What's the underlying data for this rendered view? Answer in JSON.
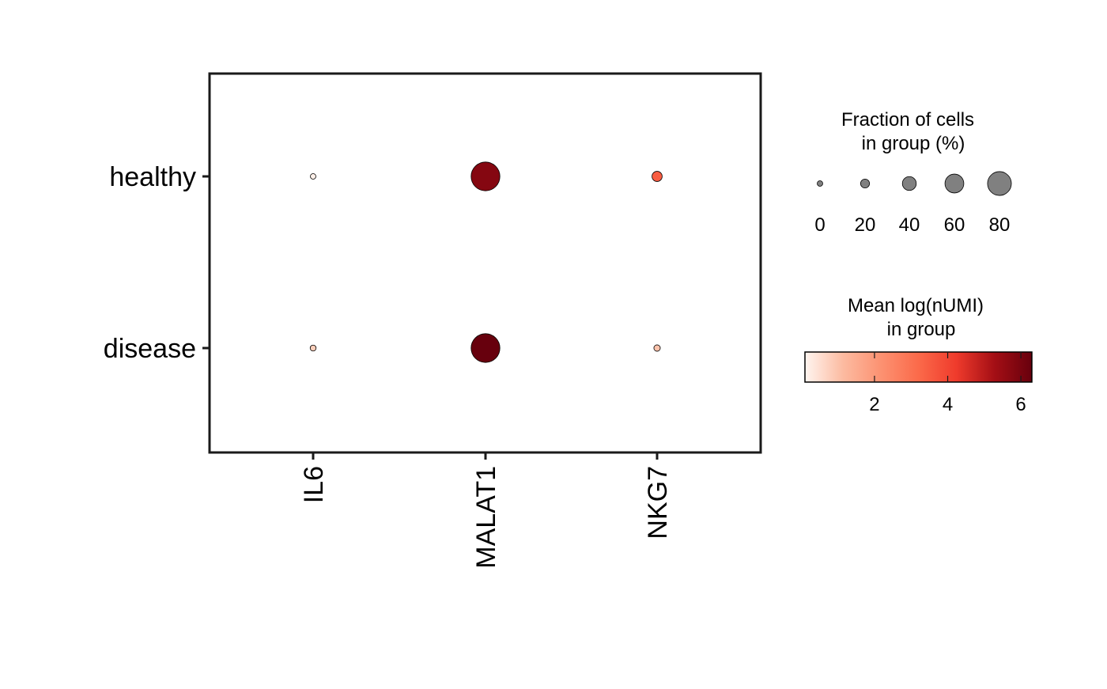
{
  "chart_data": {
    "type": "dotplot",
    "categories_x": [
      "IL6",
      "MALAT1",
      "NKG7"
    ],
    "categories_y": [
      "healthy",
      "disease"
    ],
    "points": [
      {
        "group": "healthy",
        "gene": "IL6",
        "fraction_pct": 2,
        "mean_log_numi": 0.2
      },
      {
        "group": "healthy",
        "gene": "MALAT1",
        "fraction_pct": 100,
        "mean_log_numi": 5.8
      },
      {
        "group": "healthy",
        "gene": "NKG7",
        "fraction_pct": 25,
        "mean_log_numi": 3.5
      },
      {
        "group": "disease",
        "gene": "IL6",
        "fraction_pct": 8,
        "mean_log_numi": 0.8
      },
      {
        "group": "disease",
        "gene": "MALAT1",
        "fraction_pct": 100,
        "mean_log_numi": 6.3
      },
      {
        "group": "disease",
        "gene": "NKG7",
        "fraction_pct": 10,
        "mean_log_numi": 1.0
      }
    ],
    "size_legend": {
      "title_line1": "Fraction of cells",
      "title_line2": "in group (%)",
      "breaks": [
        0,
        20,
        40,
        60,
        80
      ],
      "labels": [
        "0",
        "20",
        "40",
        "60",
        "80"
      ],
      "fill": "#808080"
    },
    "color_legend": {
      "title_line1": "Mean log(nUMI)",
      "title_line2": "in group",
      "range": [
        0.1,
        6.3
      ],
      "breaks": [
        2,
        4,
        6
      ],
      "labels": [
        "2",
        "4",
        "6"
      ],
      "colors": [
        "#fff5f0",
        "#fcbba1",
        "#fc9272",
        "#fb6a4a",
        "#ef3b2c",
        "#a50f15",
        "#67000d"
      ]
    },
    "grid": false
  }
}
